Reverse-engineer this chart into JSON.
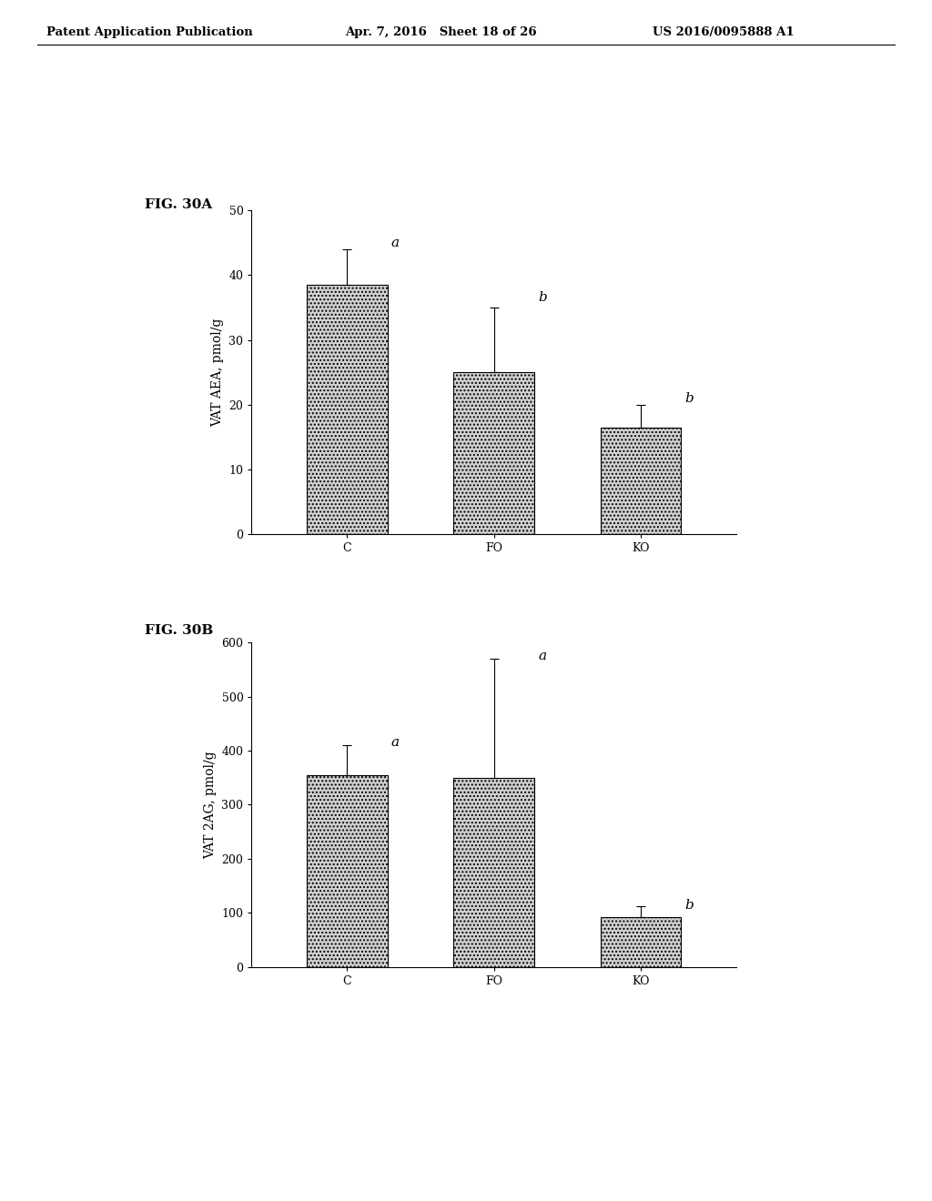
{
  "header_left": "Patent Application Publication",
  "header_mid": "Apr. 7, 2016   Sheet 18 of 26",
  "header_right": "US 2016/0095888 A1",
  "fig_a_label": "FIG. 30A",
  "fig_b_label": "FIG. 30B",
  "categories": [
    "C",
    "FO",
    "KO"
  ],
  "fig_a": {
    "values": [
      38.5,
      25.0,
      16.5
    ],
    "errors": [
      5.5,
      10.0,
      3.5
    ],
    "ylabel": "VAT AEA, pmol/g",
    "ylim": [
      0,
      50
    ],
    "yticks": [
      0,
      10,
      20,
      30,
      40,
      50
    ],
    "sig_labels": [
      "a",
      "b",
      "b"
    ],
    "sig_label_offsets": [
      6.5,
      11.5,
      4.5
    ]
  },
  "fig_b": {
    "values": [
      355.0,
      350.0,
      92.0
    ],
    "errors": [
      55.0,
      220.0,
      20.0
    ],
    "ylabel": "VAT 2AG, pmol/g",
    "ylim": [
      0,
      600
    ],
    "yticks": [
      0,
      100,
      200,
      300,
      400,
      500,
      600
    ],
    "sig_labels": [
      "a",
      "a",
      "b"
    ],
    "sig_label_offsets": [
      60.0,
      225.0,
      22.0
    ]
  },
  "bar_color": "#d0d0d0",
  "bar_edgecolor": "#000000",
  "background_color": "#ffffff",
  "header_fontsize": 9.5,
  "fig_label_fontsize": 11,
  "axis_label_fontsize": 10,
  "tick_fontsize": 9,
  "sig_fontsize": 11
}
